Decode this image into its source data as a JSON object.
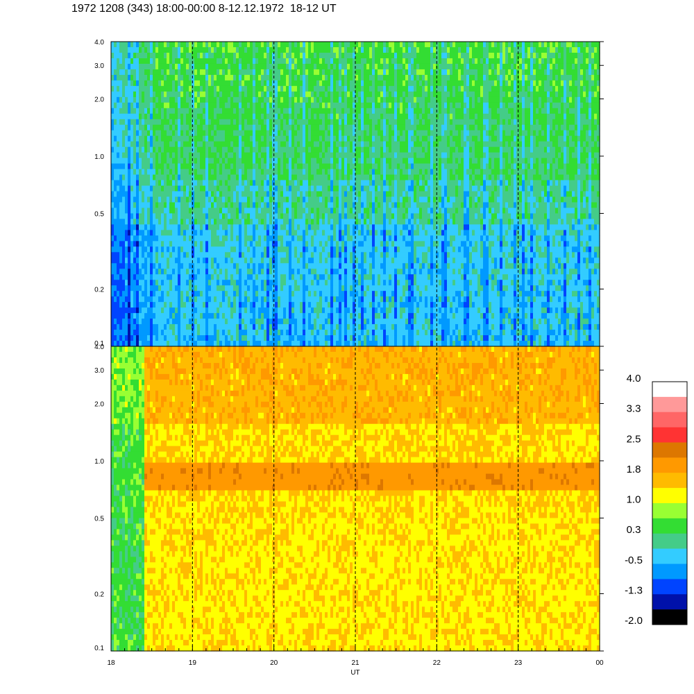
{
  "title": "1972 1208 (343) 18:00-00:00 8-12.12.1972  18-12 UT",
  "chart_data": {
    "type": "heatmap",
    "xlabel": "UT",
    "x_ticks": [
      "18",
      "19",
      "20",
      "21",
      "22",
      "23",
      "00"
    ],
    "x_range": [
      18,
      24
    ],
    "y_scale": "log",
    "y_range": [
      0.1,
      4.0
    ],
    "panels": [
      {
        "name": "upper",
        "y_ticks": [
          "4.0",
          "3.0",
          "2.0",
          "1.0",
          "0.5",
          "0.2",
          "0.1"
        ],
        "y_tick_values": [
          4.0,
          3.0,
          2.0,
          1.0,
          0.5,
          0.2,
          0.1
        ],
        "dominant_levels": "-0.5 to 1.0",
        "low_band_level": -0.5,
        "high_band_level": 0.3
      },
      {
        "name": "lower",
        "y_ticks": [
          "4.0",
          "3.0",
          "2.0",
          "1.0",
          "0.5",
          "0.2",
          "0.1"
        ],
        "y_tick_values": [
          4.0,
          3.0,
          2.0,
          1.0,
          0.5,
          0.2,
          0.1
        ],
        "dominant_levels": "1.0 to 1.8",
        "band_start_x": 18.4,
        "band_y_range": [
          0.7,
          0.95
        ],
        "band_level": 1.8
      }
    ],
    "colorbar": {
      "tick_labels": [
        "4.0",
        "3.3",
        "2.5",
        "1.8",
        "1.0",
        "0.3",
        "-0.5",
        "-1.3",
        "-2.0"
      ],
      "colors": [
        "#ffffff",
        "#ff9999",
        "#ff6666",
        "#ff3333",
        "#dd7700",
        "#ff9900",
        "#ffbb00",
        "#ffff00",
        "#99ff33",
        "#33dd33",
        "#44cc88",
        "#33ccff",
        "#0099ff",
        "#0044ff",
        "#0011aa",
        "#000000"
      ]
    }
  }
}
